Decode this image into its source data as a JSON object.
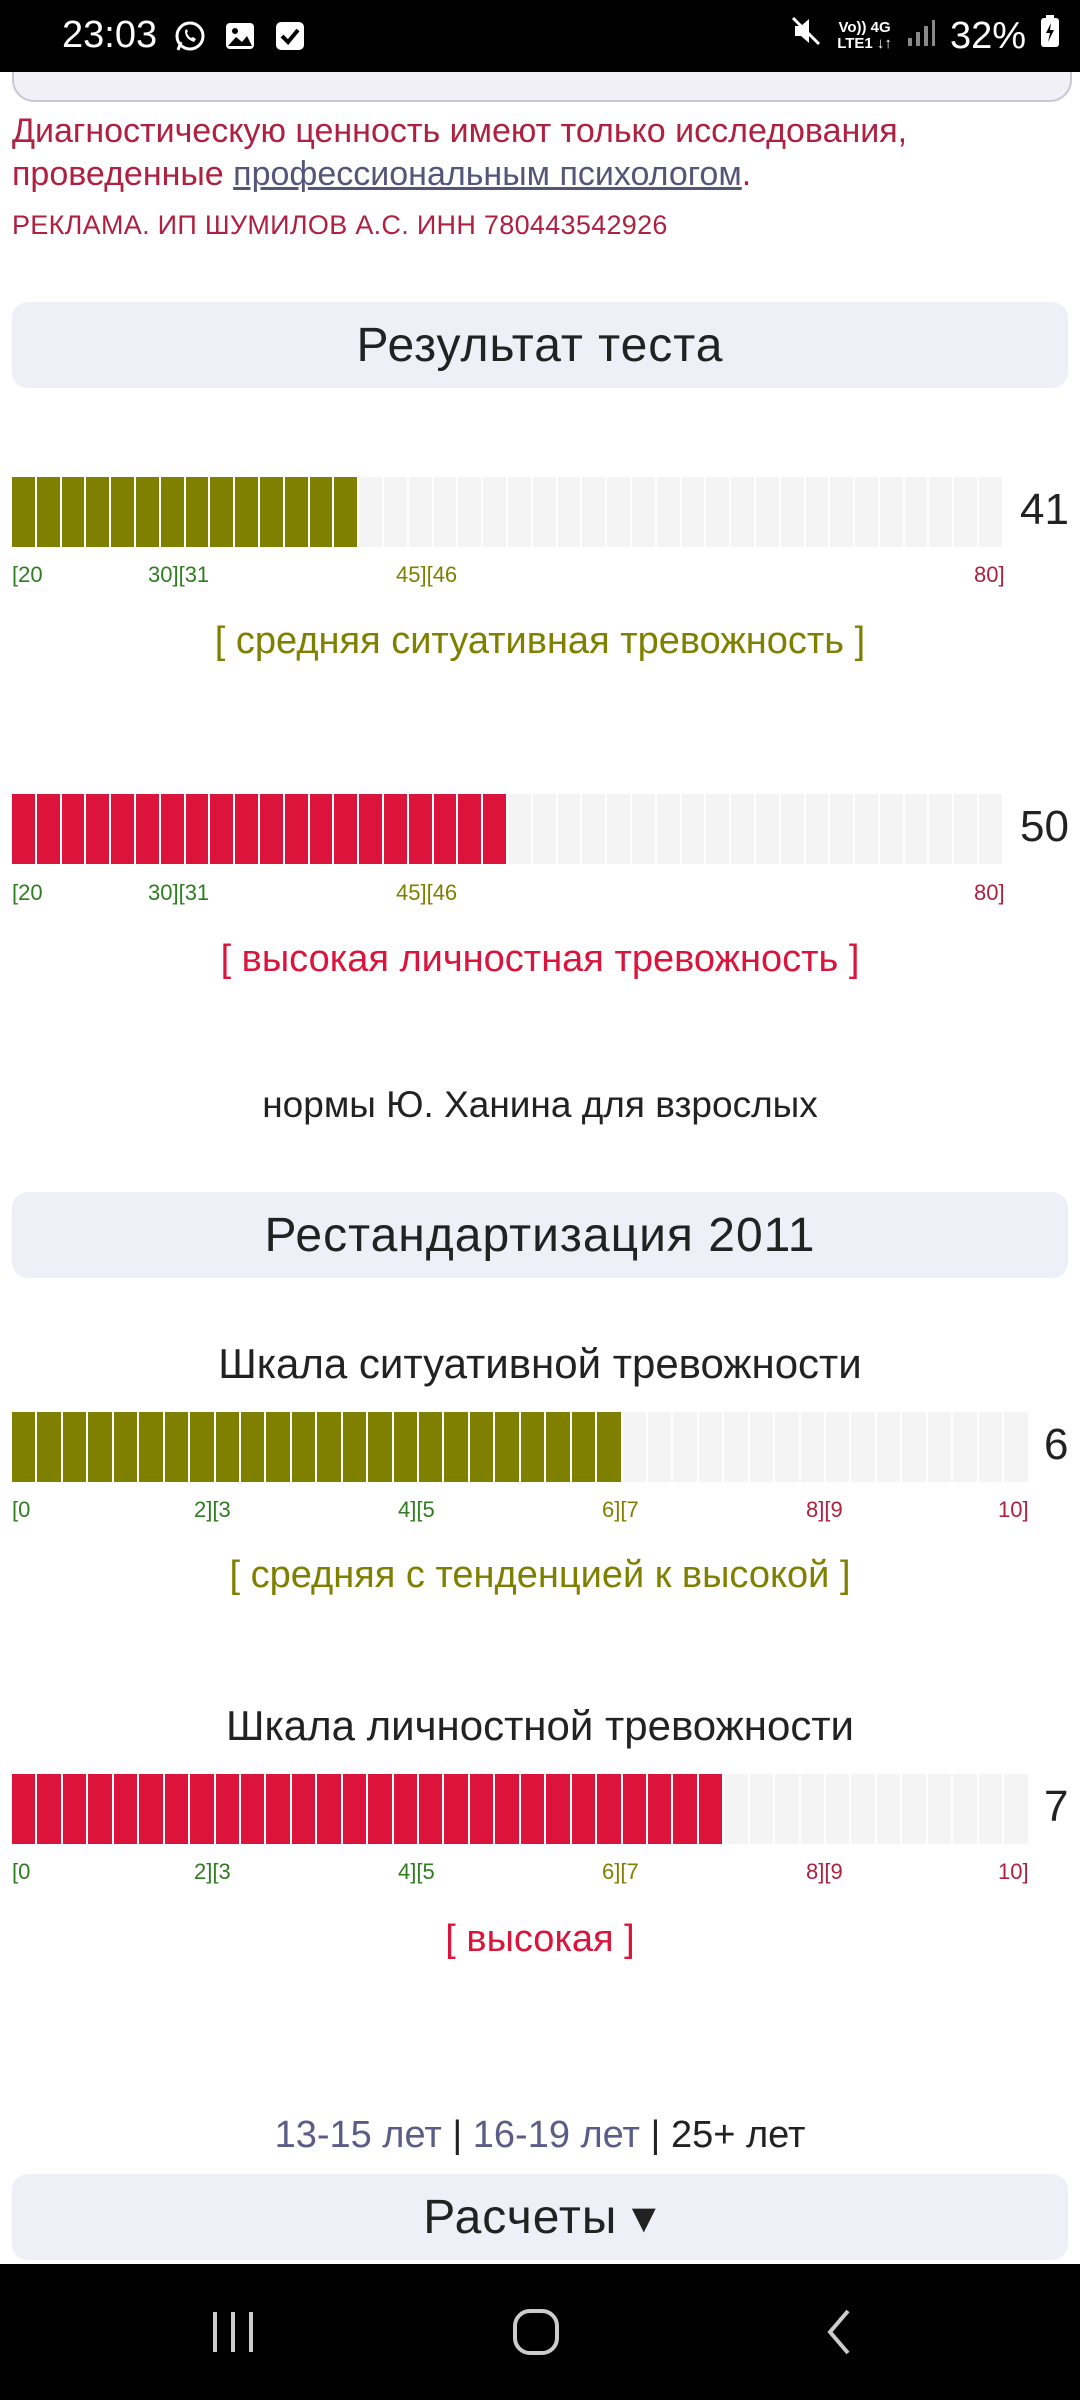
{
  "status_bar": {
    "time": "23:03",
    "left_icons": [
      "whatsapp-icon",
      "gallery-icon",
      "checkbox-icon"
    ],
    "network_top": "Vo)) 4G",
    "network_bottom": "LTE1 ↓↑",
    "battery": "32%"
  },
  "disclaimer": {
    "text_before": "Диагностическую ценность имеют только исследования, проведенные ",
    "link": "профессиональным психологом",
    "text_after": "."
  },
  "ad": "РЕКЛАМА. ИП ШУМИЛОВ А.С. ИНН 780443542926",
  "result_header": "Результат теста",
  "scores": [
    {
      "value": "41",
      "fill_fraction": 0.35,
      "color": "#808000",
      "ticks": [
        {
          "label": "[20",
          "color": "#2e7d1e"
        },
        {
          "label": "30][31",
          "color": "#2e7d1e"
        },
        {
          "label": "45][46",
          "color": "#808000"
        },
        {
          "label": "80]",
          "color": "#b02040"
        }
      ],
      "verdict": "[ средняя ситуативная тревожность ]",
      "verdict_color": "#808000"
    },
    {
      "value": "50",
      "fill_fraction": 0.5,
      "color": "#dc143c",
      "ticks": [
        {
          "label": "[20",
          "color": "#2e7d1e"
        },
        {
          "label": "30][31",
          "color": "#2e7d1e"
        },
        {
          "label": "45][46",
          "color": "#808000"
        },
        {
          "label": "80]",
          "color": "#b02040"
        }
      ],
      "verdict": "[ высокая личностная тревожность ]",
      "verdict_color": "#dc143c"
    }
  ],
  "norms_note": "нормы Ю. Ханина для взрослых",
  "restand_header": "Рестандартизация 2011",
  "restand_scales": [
    {
      "title": "Шкала ситуативной тревожности",
      "value": "6",
      "fill_fraction": 0.6,
      "color": "#808000",
      "ticks": [
        {
          "label": "[0",
          "color": "#2e7d1e"
        },
        {
          "label": "2][3",
          "color": "#2e7d1e"
        },
        {
          "label": "4][5",
          "color": "#2e7d1e"
        },
        {
          "label": "6][7",
          "color": "#808000"
        },
        {
          "label": "8][9",
          "color": "#b02040"
        },
        {
          "label": "10]",
          "color": "#b02040"
        }
      ],
      "verdict": "[ средняя с тенденцией к высокой ]",
      "verdict_color": "#808000"
    },
    {
      "title": "Шкала личностной тревожности",
      "value": "7",
      "fill_fraction": 0.7,
      "color": "#dc143c",
      "ticks": [
        {
          "label": "[0",
          "color": "#2e7d1e"
        },
        {
          "label": "2][3",
          "color": "#2e7d1e"
        },
        {
          "label": "4][5",
          "color": "#2e7d1e"
        },
        {
          "label": "6][7",
          "color": "#808000"
        },
        {
          "label": "8][9",
          "color": "#b02040"
        },
        {
          "label": "10]",
          "color": "#b02040"
        }
      ],
      "verdict": "[ высокая ]",
      "verdict_color": "#dc143c"
    }
  ],
  "age_groups": {
    "link1": "13-15 лет",
    "sep": " | ",
    "link2": "16-19 лет",
    "current": "25+ лет"
  },
  "calc_header": "Расчеты ▾",
  "nav": {
    "icons": [
      "recent-apps-icon",
      "home-icon",
      "back-icon"
    ]
  }
}
